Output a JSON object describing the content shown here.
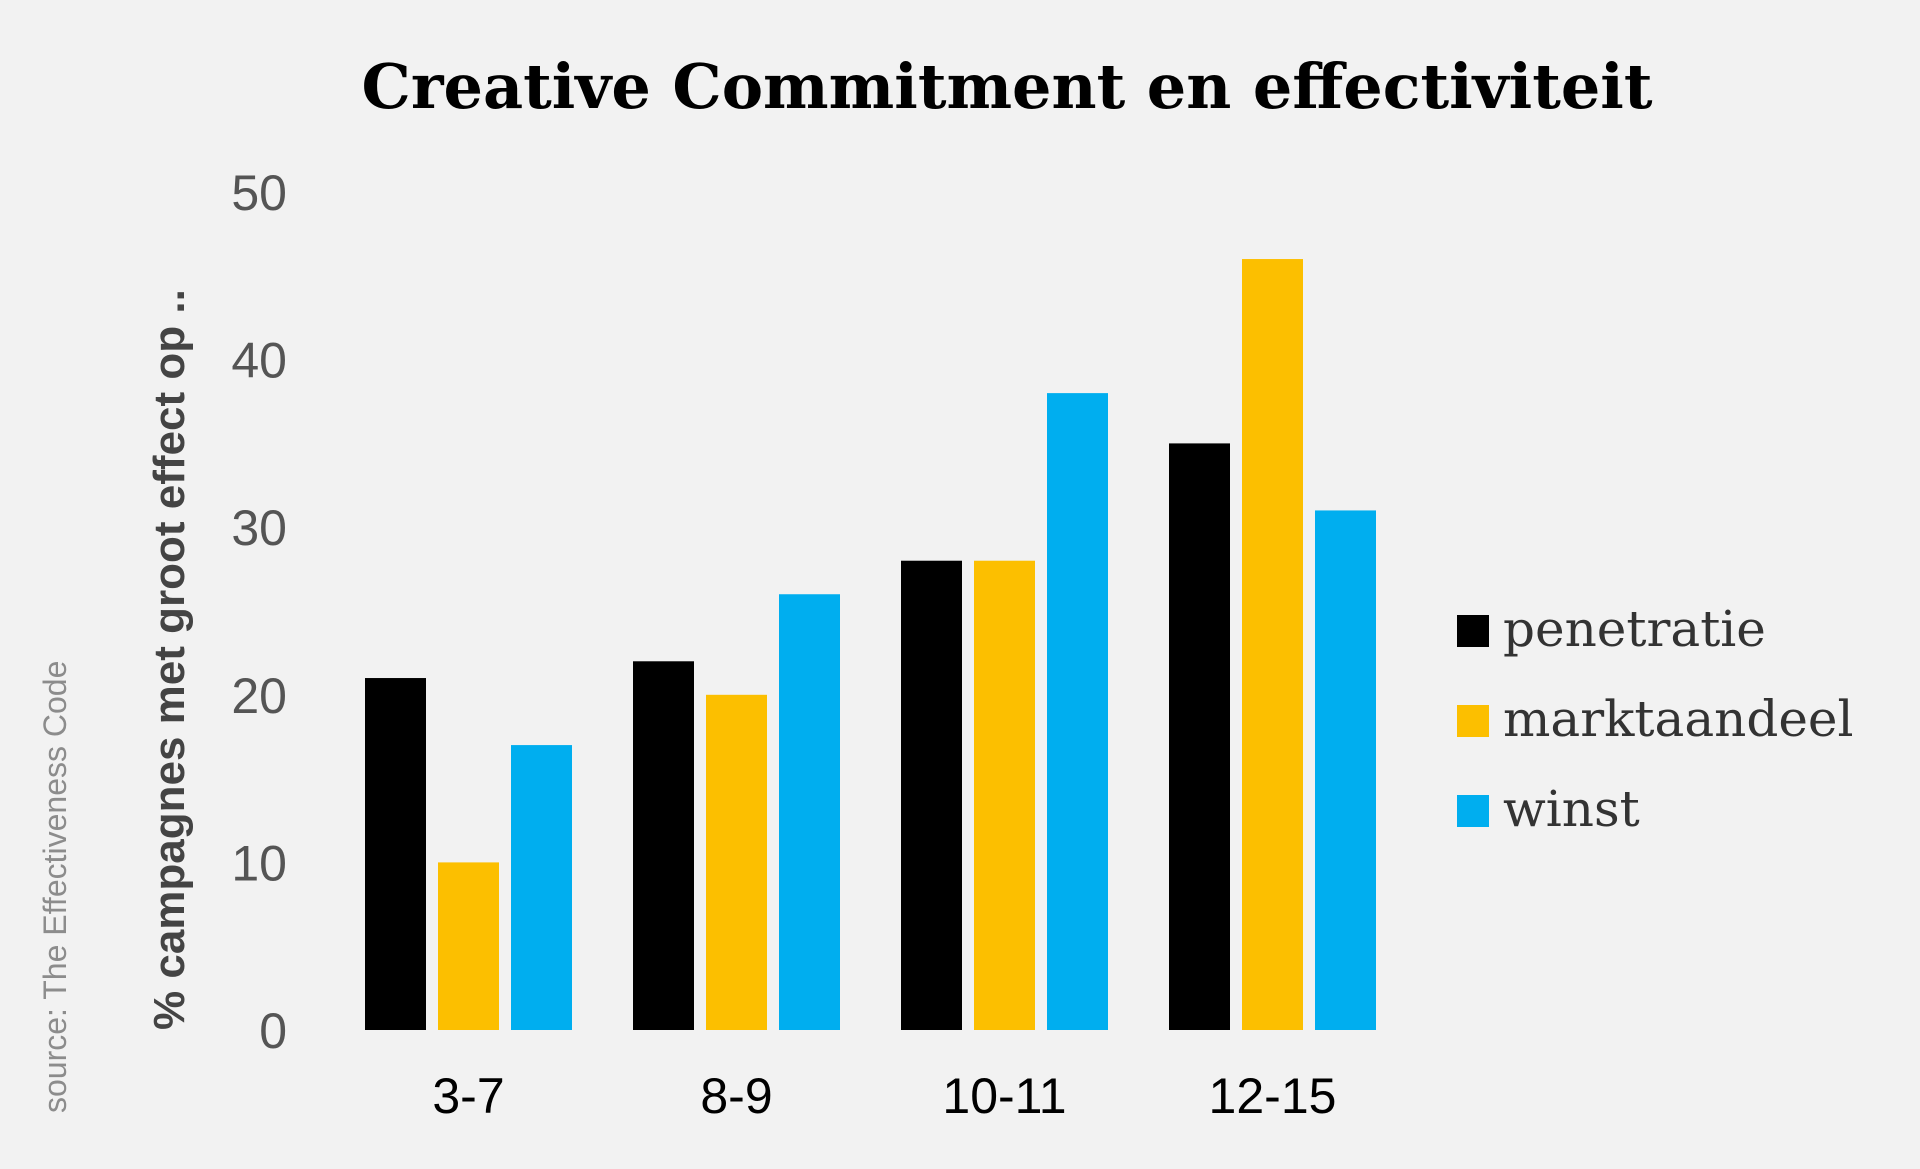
{
  "chart_data": {
    "type": "bar",
    "title": "Creative Commitment en effectiviteit",
    "xlabel": "",
    "ylabel": "% campagnes met groot effect op ..",
    "source": "source: The Effectiveness Code",
    "categories": [
      "3-7",
      "8-9",
      "10-11",
      "12-15"
    ],
    "series": [
      {
        "name": "penetratie",
        "color": "#000000",
        "values": [
          21,
          22,
          28,
          35
        ]
      },
      {
        "name": "marktaandeel",
        "color": "#fcbf00",
        "values": [
          10,
          20,
          28,
          46
        ]
      },
      {
        "name": "winst",
        "color": "#00aeef",
        "values": [
          17,
          26,
          38,
          31
        ]
      }
    ],
    "ylim": [
      0,
      50
    ],
    "yticks": [
      0,
      10,
      20,
      30,
      40,
      50
    ],
    "grid": false,
    "legend_position": "right"
  }
}
